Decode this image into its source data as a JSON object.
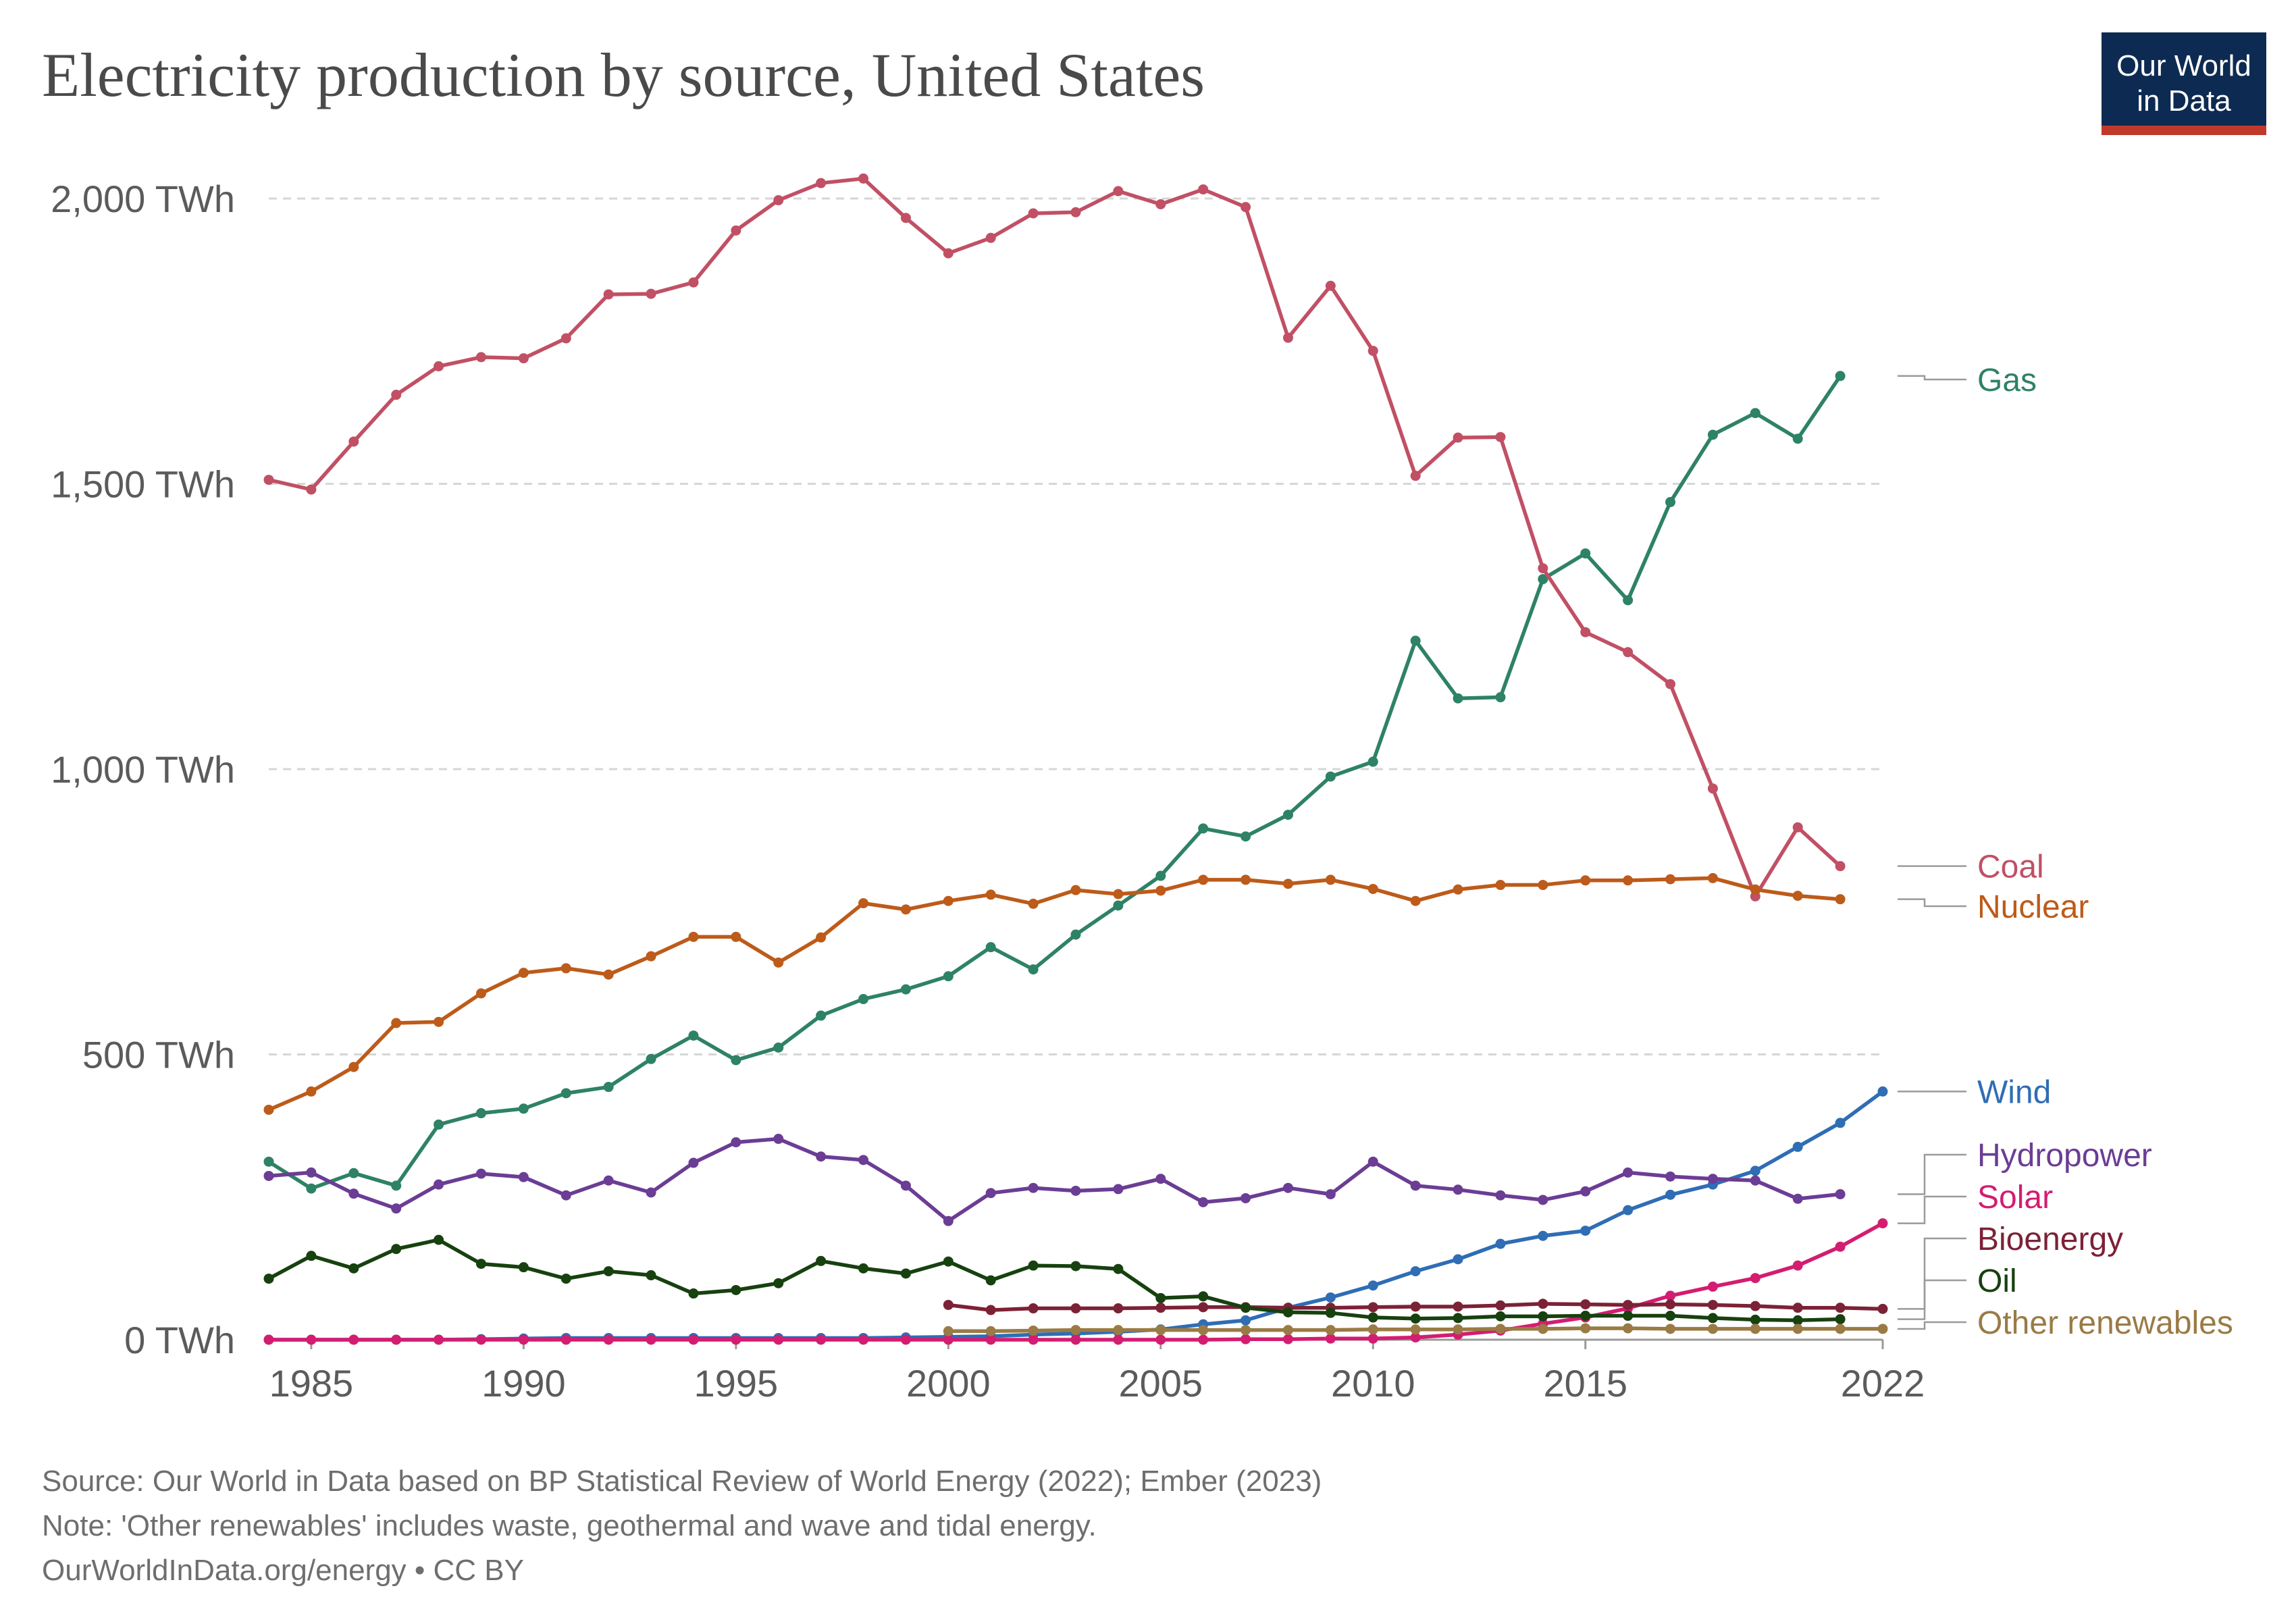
{
  "title": "Electricity production by source, United States",
  "logo": {
    "line1": "Our World",
    "line2": "in Data",
    "bg": "#0d2b52",
    "accent": "#c0392b"
  },
  "footer": {
    "source": "Source: Our World in Data based on BP Statistical Review of World Energy (2022); Ember (2023)",
    "note": "Note: 'Other renewables' includes waste, geothermal and wave and tidal energy.",
    "link": "OurWorldInData.org/energy • CC BY"
  },
  "chart_data": {
    "type": "line",
    "ylim": [
      0,
      2000
    ],
    "xlim": [
      1984,
      2022
    ],
    "x_ticks": [
      1985,
      1990,
      1995,
      2000,
      2005,
      2010,
      2015,
      2022
    ],
    "y_ticks": [
      0,
      500,
      1000,
      1500,
      2000
    ],
    "y_tick_labels": [
      "0 TWh",
      "500 TWh",
      "1,000 TWh",
      "1,500 TWh",
      "2,000 TWh"
    ],
    "grid": true,
    "series": [
      {
        "name": "Gas",
        "color": "#2e8266",
        "start": 1984,
        "values": [
          312,
          265,
          292,
          270,
          377,
          397,
          405,
          432,
          443,
          492,
          533,
          490,
          512,
          568,
          597,
          614,
          637,
          688,
          649,
          710,
          761,
          813,
          896,
          882,
          920,
          987,
          1013,
          1225,
          1124,
          1126,
          1333,
          1378,
          1296,
          1468,
          1586,
          1624,
          1579,
          1689
        ]
      },
      {
        "name": "Coal",
        "color": "#c15065",
        "start": 1984,
        "values": [
          1507,
          1490,
          1574,
          1656,
          1706,
          1722,
          1720,
          1755,
          1832,
          1833,
          1853,
          1944,
          1997,
          2027,
          2035,
          1966,
          1904,
          1931,
          1974,
          1976,
          2013,
          1990,
          2016,
          1985,
          1756,
          1847,
          1733,
          1514,
          1581,
          1582,
          1352,
          1240,
          1205,
          1149,
          966,
          777,
          898,
          830
        ]
      },
      {
        "name": "Nuclear",
        "color": "#bd5b1a",
        "start": 1984,
        "values": [
          403,
          435,
          478,
          555,
          557,
          607,
          643,
          651,
          640,
          672,
          706,
          706,
          661,
          705,
          765,
          754,
          769,
          780,
          764,
          788,
          781,
          787,
          806,
          806,
          799,
          806,
          790,
          769,
          789,
          797,
          797,
          805,
          805,
          807,
          809,
          789,
          778,
          772
        ]
      },
      {
        "name": "Wind",
        "color": "#2f6db5",
        "start": 1984,
        "values": [
          0,
          0,
          0,
          0,
          0,
          1,
          2,
          3,
          3,
          3,
          3,
          3,
          3,
          3,
          3,
          4,
          5,
          6,
          9,
          11,
          14,
          18,
          27,
          34,
          56,
          74,
          95,
          120,
          141,
          168,
          182,
          191,
          227,
          254,
          272,
          296,
          338,
          380,
          435
        ]
      },
      {
        "name": "Hydropower",
        "color": "#6b3d94",
        "start": 1984,
        "values": [
          287,
          293,
          256,
          230,
          272,
          291,
          285,
          253,
          279,
          258,
          310,
          346,
          352,
          321,
          315,
          270,
          208,
          257,
          266,
          261,
          264,
          282,
          241,
          248,
          266,
          255,
          312,
          270,
          263,
          253,
          245,
          260,
          293,
          286,
          282,
          279,
          247,
          255
        ]
      },
      {
        "name": "Solar",
        "color": "#d31d71",
        "start": 1984,
        "values": [
          0,
          0,
          0,
          0,
          0,
          0,
          0,
          0,
          0,
          0,
          0,
          0,
          0,
          0,
          0,
          0,
          0,
          0,
          0,
          0,
          0,
          0,
          0,
          1,
          1,
          2,
          2,
          4,
          9,
          16,
          28,
          39,
          55,
          77,
          93,
          108,
          130,
          163,
          204
        ]
      },
      {
        "name": "Bioenergy",
        "color": "#7c2236",
        "start": 2000,
        "values": [
          61,
          52,
          55,
          55,
          55,
          56,
          57,
          57,
          56,
          56,
          57,
          58,
          58,
          60,
          63,
          62,
          61,
          62,
          61,
          59,
          56,
          56,
          54
        ]
      },
      {
        "name": "Oil",
        "color": "#17410f",
        "start": 1984,
        "values": [
          107,
          147,
          125,
          159,
          175,
          133,
          127,
          107,
          120,
          113,
          81,
          87,
          99,
          138,
          125,
          116,
          137,
          104,
          130,
          129,
          124,
          73,
          76,
          56,
          48,
          47,
          39,
          37,
          38,
          41,
          41,
          42,
          42,
          42,
          38,
          35,
          34,
          36
        ]
      },
      {
        "name": "Other renewables",
        "color": "#9a7b45",
        "start": 2000,
        "values": [
          15,
          15,
          16,
          17,
          17,
          17,
          17,
          17,
          17,
          17,
          18,
          18,
          18,
          19,
          19,
          20,
          20,
          19,
          19,
          19,
          19,
          19,
          19
        ]
      }
    ],
    "end_labels": [
      {
        "name": "Gas",
        "text": "Gas"
      },
      {
        "name": "Coal",
        "text": "Coal"
      },
      {
        "name": "Nuclear",
        "text": "Nuclear"
      },
      {
        "name": "Wind",
        "text": "Wind"
      },
      {
        "name": "Hydropower",
        "text": "Hydropower"
      },
      {
        "name": "Solar",
        "text": "Solar"
      },
      {
        "name": "Bioenergy",
        "text": "Bioenergy"
      },
      {
        "name": "Oil",
        "text": "Oil"
      },
      {
        "name": "Other renewables",
        "text": "Other renewables"
      }
    ]
  }
}
